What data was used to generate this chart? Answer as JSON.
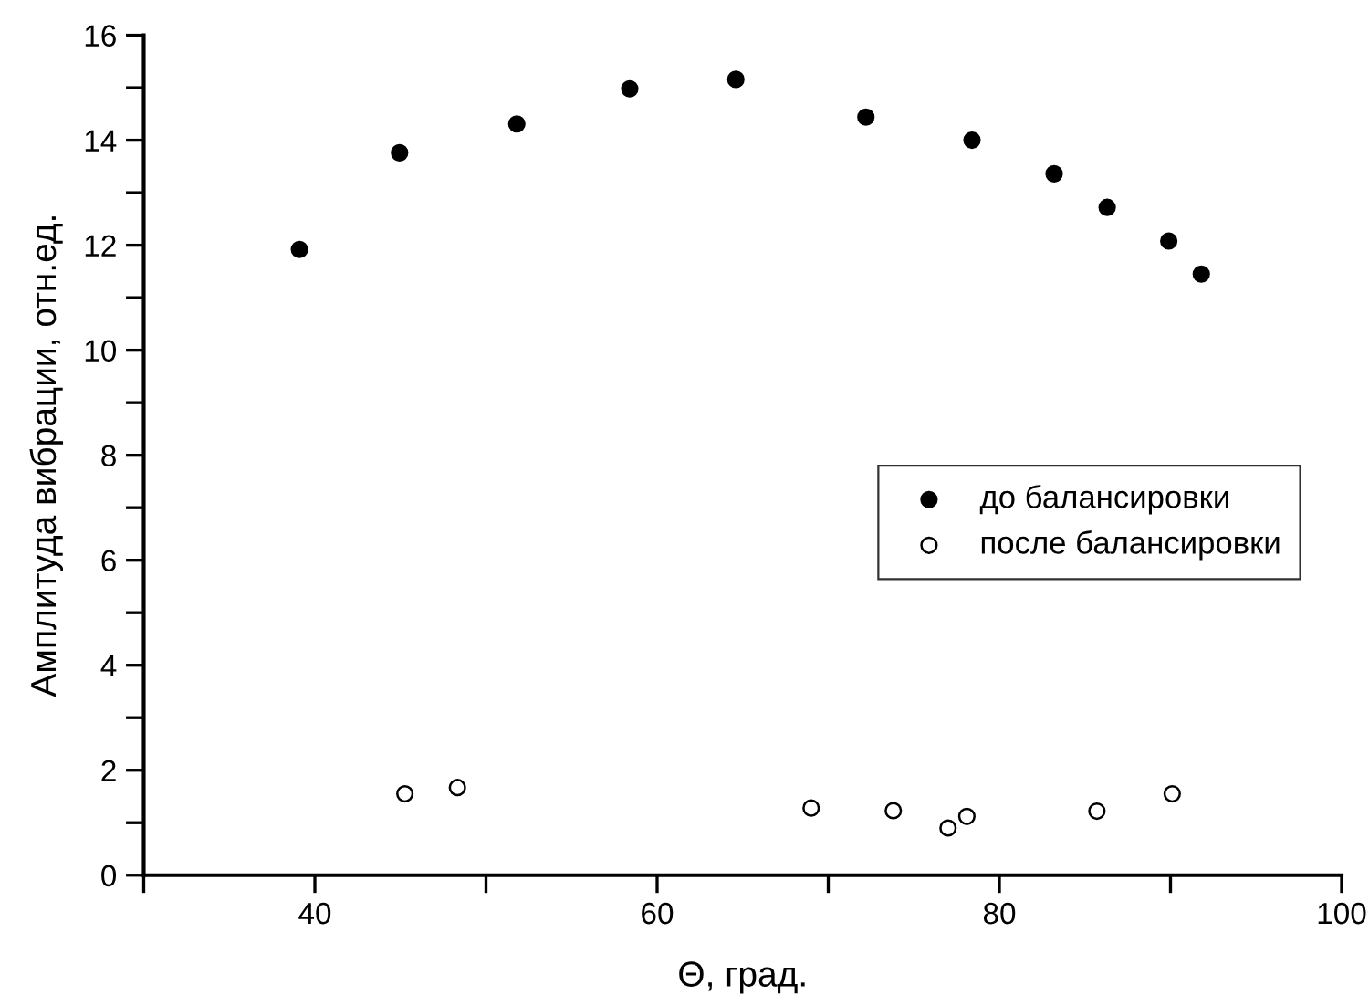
{
  "chart_data": {
    "type": "scatter",
    "xlabel": "Θ, град.",
    "ylabel": "Амплитуда вибрации, отн.ед.",
    "xlim": [
      30,
      100
    ],
    "ylim": [
      0,
      16
    ],
    "xticks": [
      {
        "value": 30,
        "label": null
      },
      40,
      {
        "value": 50,
        "label": null
      },
      60,
      {
        "value": 70,
        "label": null
      },
      80,
      {
        "value": 90,
        "label": null
      },
      100
    ],
    "yticks": [
      0,
      {
        "value": 1,
        "label": null
      },
      2,
      {
        "value": 3,
        "label": null
      },
      4,
      {
        "value": 5,
        "label": null
      },
      6,
      {
        "value": 7,
        "label": null
      },
      8,
      {
        "value": 9,
        "label": null
      },
      10,
      {
        "value": 11,
        "label": null
      },
      12,
      {
        "value": 13,
        "label": null
      },
      14,
      {
        "value": 15,
        "label": null
      },
      16
    ],
    "grid": false,
    "legend": "right",
    "marker": "circle",
    "series": [
      {
        "name": "до балансировки",
        "color": "#000000",
        "x": [
          39.1,
          44.95,
          51.8,
          58.4,
          64.6,
          72.2,
          78.4,
          83.2,
          86.3,
          89.9,
          91.8
        ],
        "values": [
          11.92,
          13.76,
          14.31,
          14.98,
          15.16,
          14.44,
          14.0,
          13.36,
          12.72,
          12.08,
          11.45
        ]
      },
      {
        "name": "после балансировки",
        "color": "#000000",
        "x": [
          45.26,
          48.33,
          69.0,
          73.8,
          77.0,
          78.1,
          85.7,
          90.1
        ],
        "values": [
          1.55,
          1.67,
          1.28,
          1.23,
          0.9,
          1.12,
          1.22,
          1.55
        ]
      }
    ]
  }
}
